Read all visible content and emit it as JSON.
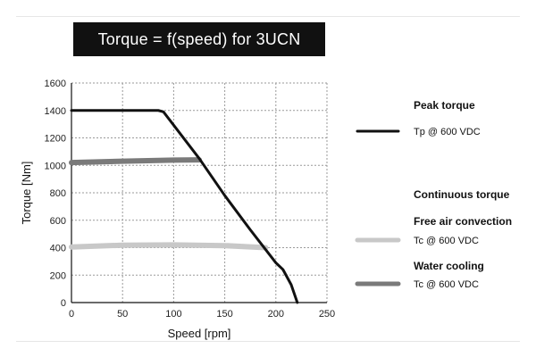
{
  "chart_data": {
    "type": "line",
    "title": "Torque = f(speed) for 3UCN",
    "xlabel": "Speed [rpm]",
    "ylabel": "Torque [Nm]",
    "xlim": [
      0,
      250
    ],
    "ylim": [
      0,
      1600
    ],
    "xticks": [
      0,
      50,
      100,
      150,
      200,
      250
    ],
    "yticks": [
      0,
      200,
      400,
      600,
      800,
      1000,
      1200,
      1400,
      1600
    ],
    "grid": true,
    "legend_position": "right",
    "series": [
      {
        "name": "Tp @ 600 VDC",
        "group": "Peak torque",
        "color": "#111111",
        "x": [
          0,
          85,
          90,
          125,
          150,
          175,
          200,
          207,
          215,
          221
        ],
        "y": [
          1400,
          1400,
          1390,
          1050,
          780,
          530,
          290,
          240,
          130,
          0
        ]
      },
      {
        "name": "Tc @ 600 VDC",
        "group": "Free air convection",
        "color": "#c8c8c8",
        "x": [
          0,
          50,
          100,
          150,
          190
        ],
        "y": [
          405,
          418,
          420,
          415,
          400
        ]
      },
      {
        "name": "Tc @ 600 VDC",
        "group": "Water cooling",
        "color": "#7a7a7a",
        "x": [
          0,
          50,
          100,
          125
        ],
        "y": [
          1020,
          1030,
          1038,
          1040
        ]
      }
    ]
  },
  "legend": {
    "peak_heading": "Peak torque",
    "peak_label": "Tp @ 600 VDC",
    "continuous_heading": "Continuous torque",
    "free_air_heading": "Free air convection",
    "free_air_label": "Tc @ 600 VDC",
    "water_heading": "Water cooling",
    "water_label": "Tc @ 600 VDC"
  }
}
